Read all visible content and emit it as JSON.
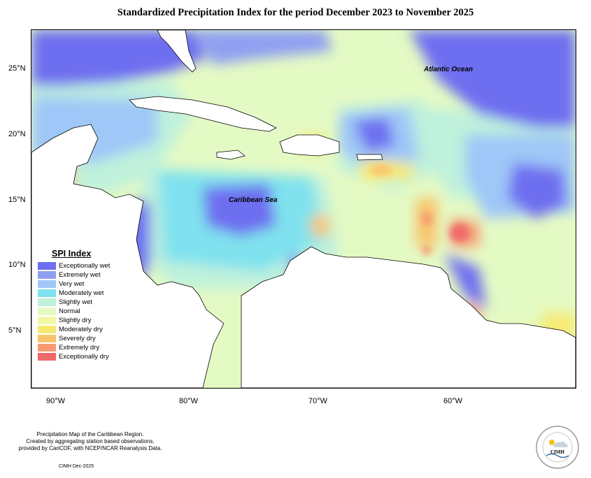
{
  "title": "Standardized Precipitation Index for the period December 2023 to November 2025",
  "labels": {
    "atlantic": "Atlantic Ocean",
    "caribbean": "Caribbean Sea"
  },
  "axes": {
    "lat_ticks": [
      "25°N",
      "20°N",
      "15°N",
      "10°N",
      "5°N"
    ],
    "lon_ticks": [
      "90°W",
      "80°W",
      "70°W",
      "60°W"
    ]
  },
  "legend": {
    "title": "SPI Index",
    "items": [
      {
        "label": "Exceptionally wet",
        "color": "#6e6ef0"
      },
      {
        "label": "Extremely wet",
        "color": "#8f9ff2"
      },
      {
        "label": "Very wet",
        "color": "#9fc7f7"
      },
      {
        "label": "Moderately wet",
        "color": "#7fe2ee"
      },
      {
        "label": "Slightly wet",
        "color": "#bff1dc"
      },
      {
        "label": "Normal",
        "color": "#e4fac4"
      },
      {
        "label": "Slightly dry",
        "color": "#f2f7a6"
      },
      {
        "label": "Moderately dry",
        "color": "#f7ea72"
      },
      {
        "label": "Severely dry",
        "color": "#f9c46a"
      },
      {
        "label": "Extremely dry",
        "color": "#f79a72"
      },
      {
        "label": "Exceptionally dry",
        "color": "#ef6a6a"
      }
    ]
  },
  "notes": {
    "line1": "Precipitation Map of the Caribbean Region.",
    "line2": "Created by aggregating station based observations,",
    "line3": "provided by CariCOF, with NCEP/NCAR Reanalysis Data.",
    "credit": "CIMH Dec-2025"
  },
  "logo": {
    "text": "CIMH"
  }
}
